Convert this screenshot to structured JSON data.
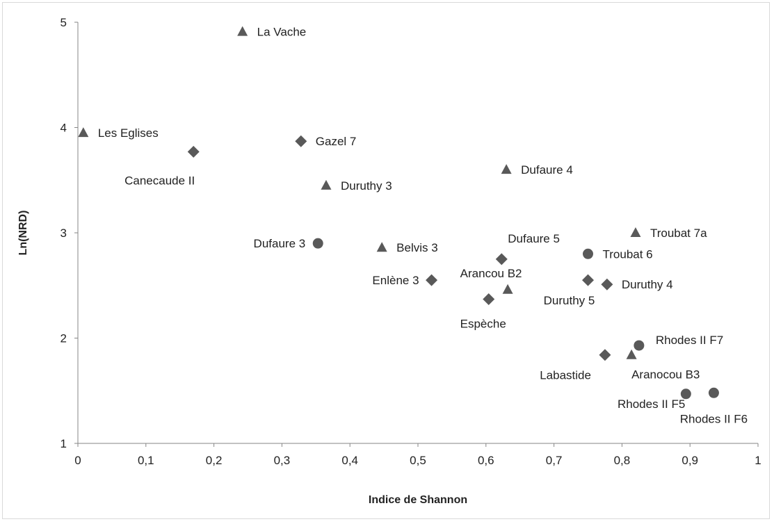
{
  "chart_data": {
    "type": "scatter",
    "title": "",
    "xlabel": "Indice de Shannon",
    "ylabel": "Ln(NRD)",
    "xlim": [
      0,
      1
    ],
    "ylim": [
      1,
      5
    ],
    "x_ticks": [
      "0",
      "0,1",
      "0,2",
      "0,3",
      "0,4",
      "0,5",
      "0,6",
      "0,7",
      "0,8",
      "0,9",
      "1"
    ],
    "y_ticks": [
      "1",
      "2",
      "3",
      "4",
      "5"
    ],
    "grid": false,
    "legend": "none",
    "marker_color": "#595959",
    "points": [
      {
        "label": "La Vache",
        "x": 0.242,
        "y": 4.91,
        "marker": "triangle",
        "anchor": "right"
      },
      {
        "label": "Les Eglises",
        "x": 0.008,
        "y": 3.95,
        "marker": "triangle",
        "anchor": "right"
      },
      {
        "label": "Canecaude II",
        "x": 0.17,
        "y": 3.77,
        "marker": "diamond",
        "anchor": "below-left"
      },
      {
        "label": "Gazel 7",
        "x": 0.328,
        "y": 3.87,
        "marker": "diamond",
        "anchor": "right"
      },
      {
        "label": "Duruthy 3",
        "x": 0.365,
        "y": 3.45,
        "marker": "triangle",
        "anchor": "right"
      },
      {
        "label": "Dufaure 4",
        "x": 0.63,
        "y": 3.6,
        "marker": "triangle",
        "anchor": "right"
      },
      {
        "label": "Dufaure 3",
        "x": 0.353,
        "y": 2.9,
        "marker": "circle",
        "anchor": "left"
      },
      {
        "label": "Belvis 3",
        "x": 0.447,
        "y": 2.86,
        "marker": "triangle",
        "anchor": "right"
      },
      {
        "label": "Dufaure 5",
        "x": 0.623,
        "y": 2.75,
        "marker": "diamond",
        "anchor": "above-right"
      },
      {
        "label": "Arancou B2",
        "x": 0.632,
        "y": 2.46,
        "marker": "triangle",
        "anchor": "above-right"
      },
      {
        "label": "Enlène 3",
        "x": 0.52,
        "y": 2.55,
        "marker": "diamond",
        "anchor": "left"
      },
      {
        "label": "Espèche",
        "x": 0.604,
        "y": 2.37,
        "marker": "diamond",
        "anchor": "below"
      },
      {
        "label": "Troubat 7a",
        "x": 0.82,
        "y": 3.0,
        "marker": "triangle",
        "anchor": "right"
      },
      {
        "label": "Troubat  6",
        "x": 0.75,
        "y": 2.8,
        "marker": "circle",
        "anchor": "right"
      },
      {
        "label": "Duruthy 5",
        "x": 0.75,
        "y": 2.55,
        "marker": "diamond",
        "anchor": "below"
      },
      {
        "label": "Duruthy 4",
        "x": 0.778,
        "y": 2.51,
        "marker": "diamond",
        "anchor": "right"
      },
      {
        "label": "Rhodes II F7",
        "x": 0.825,
        "y": 1.93,
        "marker": "circle",
        "anchor": "above-right"
      },
      {
        "label": "Labastide",
        "x": 0.775,
        "y": 1.84,
        "marker": "diamond",
        "anchor": "below-left"
      },
      {
        "label": "Aranocou B3",
        "x": 0.814,
        "y": 1.84,
        "marker": "triangle",
        "anchor": "below-right"
      },
      {
        "label": "Rhodes II F5",
        "x": 0.894,
        "y": 1.47,
        "marker": "circle",
        "anchor": "below-left"
      },
      {
        "label": "Rhodes II F6",
        "x": 0.935,
        "y": 1.48,
        "marker": "circle",
        "anchor": "below"
      }
    ]
  }
}
